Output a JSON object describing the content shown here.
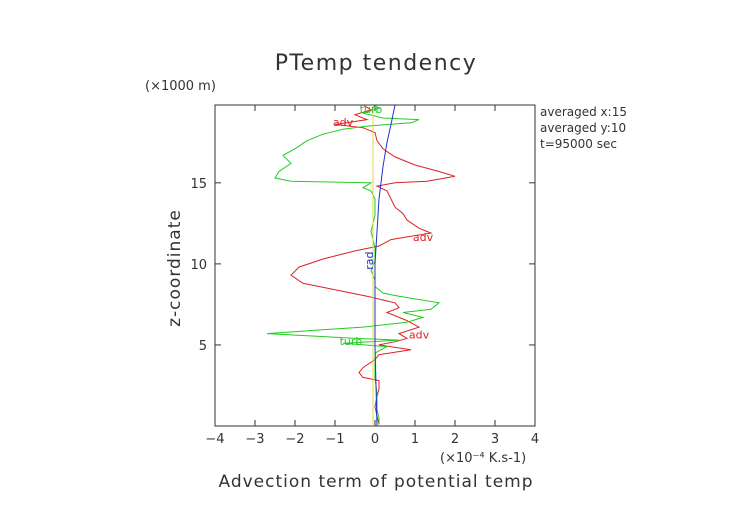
{
  "chart_data": {
    "type": "line",
    "title": "PTemp tendency",
    "xlabel": "Advection term of potential temp",
    "ylabel": "z-coordinate",
    "x_unit": "(×10⁻⁴ K.s-1)",
    "y_unit": "(×1000 m)",
    "xlim": [
      -4,
      4
    ],
    "ylim": [
      0,
      19.8
    ],
    "xticks": [
      -4,
      -3,
      -2,
      -1,
      0,
      1,
      2,
      3,
      4
    ],
    "yticks": [
      5,
      10,
      15
    ],
    "info": [
      "averaged  x:15",
      "averaged  y:10",
      "t=95000 sec"
    ],
    "series": [
      {
        "name": "adv",
        "color": "#dd2222",
        "points": [
          [
            0.1,
            0.1
          ],
          [
            0.05,
            0.6
          ],
          [
            0,
            1.2
          ],
          [
            0.05,
            1.8
          ],
          [
            0.1,
            2.3
          ],
          [
            0.1,
            2.8
          ],
          [
            -0.3,
            3.0
          ],
          [
            -0.4,
            3.3
          ],
          [
            -0.3,
            3.6
          ],
          [
            0,
            4.1
          ],
          [
            0.1,
            4.4
          ],
          [
            0.9,
            4.7
          ],
          [
            0.1,
            5.0
          ],
          [
            0.5,
            5.2
          ],
          [
            0.8,
            5.4
          ],
          [
            0.6,
            5.7
          ],
          [
            1.1,
            6.1
          ],
          [
            0.8,
            6.5
          ],
          [
            0.3,
            7.0
          ],
          [
            0.6,
            7.3
          ],
          [
            0.5,
            7.6
          ],
          [
            -0.2,
            8.0
          ],
          [
            -1.0,
            8.4
          ],
          [
            -1.8,
            8.8
          ],
          [
            -2.1,
            9.3
          ],
          [
            -1.9,
            9.8
          ],
          [
            -1.3,
            10.3
          ],
          [
            -0.5,
            10.8
          ],
          [
            0.1,
            11.1
          ],
          [
            0.4,
            11.5
          ],
          [
            0.9,
            11.7
          ],
          [
            1.4,
            11.9
          ],
          [
            1.1,
            12.2
          ],
          [
            0.8,
            12.7
          ],
          [
            0.7,
            13.1
          ],
          [
            0.5,
            13.5
          ],
          [
            0.4,
            14.0
          ],
          [
            0.3,
            14.5
          ],
          [
            0.05,
            14.8
          ],
          [
            0.5,
            15.0
          ],
          [
            1.3,
            15.1
          ],
          [
            2.0,
            15.4
          ],
          [
            1.6,
            15.7
          ],
          [
            1.0,
            16.1
          ],
          [
            0.5,
            16.6
          ],
          [
            0.2,
            17.1
          ],
          [
            0.05,
            17.6
          ],
          [
            0,
            18.1
          ],
          [
            -0.3,
            18.4
          ],
          [
            -1.0,
            18.6
          ],
          [
            -0.2,
            18.9
          ],
          [
            -0.5,
            19.2
          ],
          [
            -0.1,
            19.5
          ],
          [
            -0.3,
            19.8
          ]
        ]
      },
      {
        "name": "turb",
        "color": "#22cc22",
        "points": [
          [
            0.1,
            0.1
          ],
          [
            0.1,
            0.5
          ],
          [
            0.05,
            1.0
          ],
          [
            0.05,
            2.0
          ],
          [
            0,
            3.0
          ],
          [
            0,
            4.0
          ],
          [
            0,
            4.5
          ],
          [
            0.3,
            4.9
          ],
          [
            -0.8,
            5.1
          ],
          [
            0.6,
            5.3
          ],
          [
            -0.4,
            5.4
          ],
          [
            -2.7,
            5.7
          ],
          [
            -1.5,
            5.9
          ],
          [
            -0.3,
            6.1
          ],
          [
            0.8,
            6.4
          ],
          [
            1.2,
            6.7
          ],
          [
            0.7,
            7.0
          ],
          [
            1.4,
            7.2
          ],
          [
            1.6,
            7.6
          ],
          [
            0.6,
            8.0
          ],
          [
            0.2,
            8.2
          ],
          [
            0,
            8.6
          ],
          [
            0,
            9.0
          ],
          [
            -0.1,
            9.6
          ],
          [
            0,
            10.2
          ],
          [
            0,
            11.0
          ],
          [
            -0.1,
            12.0
          ],
          [
            0,
            13.0
          ],
          [
            0,
            14.0
          ],
          [
            -0.1,
            14.5
          ],
          [
            -0.3,
            14.7
          ],
          [
            -0.1,
            15.0
          ],
          [
            -2.1,
            15.1
          ],
          [
            -2.5,
            15.3
          ],
          [
            -2.4,
            15.7
          ],
          [
            -2.1,
            16.2
          ],
          [
            -2.3,
            16.7
          ],
          [
            -2.0,
            17.1
          ],
          [
            -1.7,
            17.6
          ],
          [
            -1.3,
            18.0
          ],
          [
            -0.8,
            18.3
          ],
          [
            -0.2,
            18.5
          ],
          [
            0.9,
            18.7
          ],
          [
            1.1,
            18.9
          ],
          [
            0.2,
            19.0
          ],
          [
            -0.3,
            19.3
          ],
          [
            0.1,
            19.6
          ],
          [
            -0.1,
            19.8
          ]
        ]
      },
      {
        "name": "rad",
        "color": "#2233cc",
        "points": [
          [
            0.05,
            0
          ],
          [
            0.03,
            2
          ],
          [
            0,
            5
          ],
          [
            0,
            8
          ],
          [
            0,
            10
          ],
          [
            0.05,
            12
          ],
          [
            0.1,
            14
          ],
          [
            0.2,
            16
          ],
          [
            0.3,
            17.5
          ],
          [
            0.4,
            18.6
          ],
          [
            0.5,
            19.8
          ]
        ]
      },
      {
        "name": "",
        "color": "#dddd44",
        "points": [
          [
            -0.05,
            0
          ],
          [
            -0.05,
            3
          ],
          [
            -0.05,
            6
          ],
          [
            -0.05,
            9
          ],
          [
            -0.05,
            12
          ],
          [
            -0.05,
            15
          ],
          [
            -0.05,
            18
          ],
          [
            -0.05,
            19.8
          ]
        ]
      }
    ],
    "labels": [
      {
        "text": "adv",
        "x": 1.2,
        "y": 11.4,
        "color": "#dd2222"
      },
      {
        "text": "adv",
        "x": 1.1,
        "y": 5.4,
        "color": "#dd2222"
      },
      {
        "text": "adv",
        "x": -0.8,
        "y": 18.5,
        "color": "#dd2222"
      },
      {
        "text": "turb",
        "x": -0.6,
        "y": 5.0,
        "color": "#22cc22"
      },
      {
        "text": "rad",
        "x": -0.05,
        "y": 10.2,
        "color": "#2233cc",
        "rotate": -90
      },
      {
        "text": "turb",
        "x": -0.1,
        "y": 19.3,
        "color": "#22cc22"
      }
    ]
  }
}
